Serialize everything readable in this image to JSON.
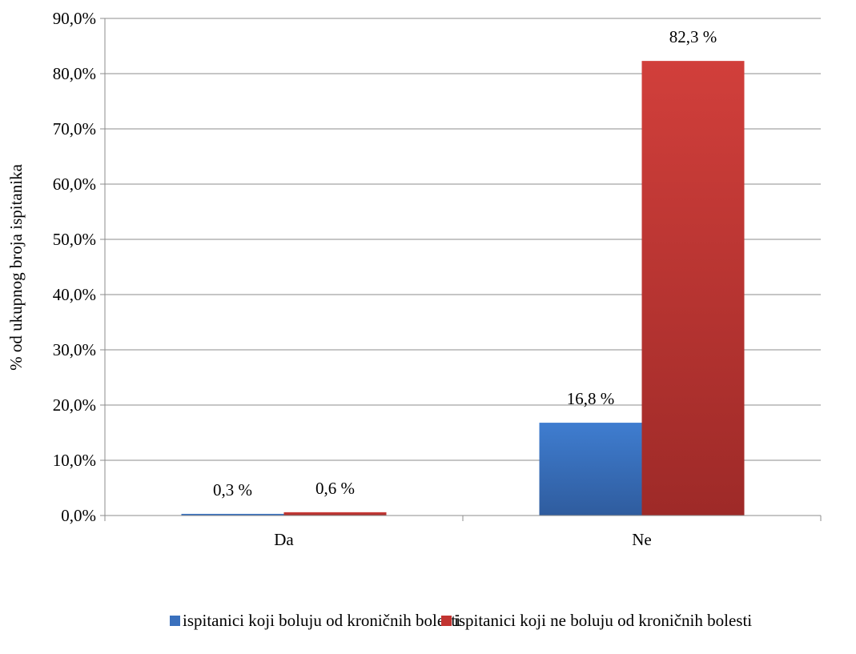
{
  "chart_data": {
    "type": "bar",
    "categories": [
      "Da",
      "Ne"
    ],
    "series": [
      {
        "name": "ispitanici koji boluju od kroničnih bolesti",
        "values": [
          0.3,
          16.8
        ],
        "labels": [
          "0,3 %",
          "16,8 %"
        ],
        "color": "#3a70bd"
      },
      {
        "name": "ispitanici koji ne boluju od kroničnih bolesti",
        "values": [
          0.6,
          82.3
        ],
        "labels": [
          "0,6 %",
          "82,3 %"
        ],
        "color": "#c23431"
      }
    ],
    "title": "",
    "xlabel": "",
    "ylabel": "% od ukupnog broja ispitanika",
    "ylim": [
      0,
      90
    ],
    "yticks": [
      "0,0%",
      "10,0%",
      "20,0%",
      "30,0%",
      "40,0%",
      "50,0%",
      "60,0%",
      "70,0%",
      "80,0%",
      "90,0%"
    ],
    "grid": true,
    "legend_position": "bottom"
  }
}
